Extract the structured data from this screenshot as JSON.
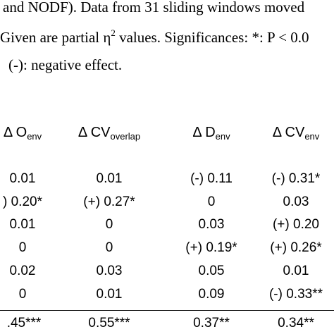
{
  "caption": {
    "lines": [
      {
        "text": "and NODF). Data from 31 sliding windows moved"
      },
      {
        "before": "Given are partial η",
        "sup": "2",
        "after": " values. Significances: *: P < 0.0"
      },
      {
        "text": "(-): negative effect."
      }
    ]
  },
  "table": {
    "header": [
      {
        "main": "Δ O",
        "sub": "env"
      },
      {
        "main": "Δ CV",
        "sub": "overlap"
      },
      {
        "main": "Δ D",
        "sub": "env"
      },
      {
        "main": "Δ CV",
        "sub": "env"
      }
    ],
    "rows": [
      [
        "0.01",
        "0.01",
        "(-) 0.11",
        "(-) 0.31*"
      ],
      [
        ") 0.20*",
        "(+) 0.27*",
        "0",
        "0.03"
      ],
      [
        "0.01",
        "0",
        "0.03",
        "(+) 0.20"
      ],
      [
        "0",
        "0",
        "(+) 0.19*",
        "(+) 0.26*"
      ],
      [
        "0.02",
        "0.03",
        "0.05",
        "0.01"
      ],
      [
        "0",
        "0.01",
        "0.09",
        "(-) 0.33**"
      ]
    ],
    "total": [
      ".45***",
      "0.55***",
      "0.37**",
      "0.34**"
    ]
  }
}
